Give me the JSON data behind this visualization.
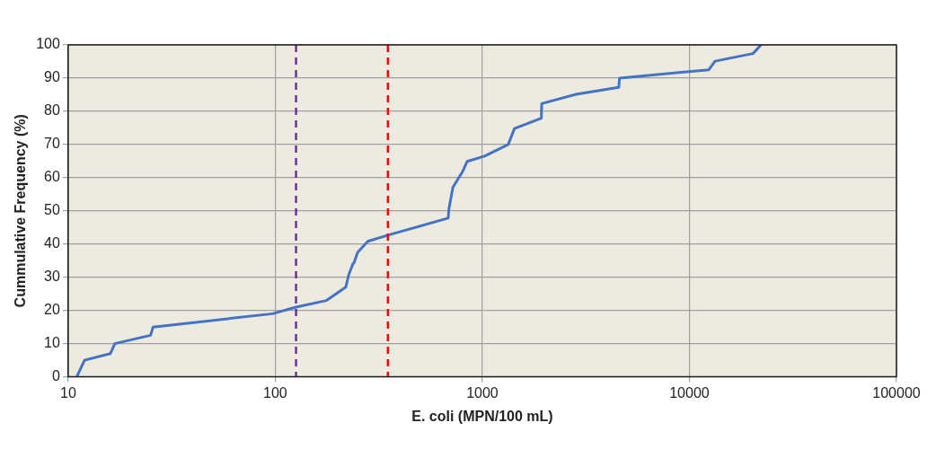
{
  "chart_data": {
    "type": "line",
    "xlabel": "E. coli (MPN/100 mL)",
    "ylabel": "Cummulative Frequency (%)",
    "log": "x",
    "xlim": [
      10,
      100000
    ],
    "xticks": [
      10,
      100,
      1000,
      10000,
      100000
    ],
    "ylim": [
      0,
      100
    ],
    "yticks": [
      0,
      10,
      20,
      30,
      40,
      50,
      60,
      70,
      80,
      90,
      100
    ],
    "grid": true,
    "legend": false,
    "marker": "none",
    "line_style": "solid",
    "series": [
      {
        "color": "#4472c4",
        "x": [
          11,
          12,
          16,
          16.8,
          25,
          25.7,
          97,
          126,
          177,
          219,
          222,
          226,
          237,
          240,
          250,
          280,
          347,
          684,
          690,
          721,
          801,
          845,
          1025,
          1334,
          1430,
          1928,
          1935,
          2838,
          4560,
          4600,
          12410,
          13300,
          20280,
          22180
        ],
        "values": [
          0,
          5,
          7,
          10,
          12.5,
          15,
          19,
          21,
          23,
          27,
          28.5,
          30.6,
          34,
          34.3,
          37.5,
          40.8,
          42.6,
          47.8,
          50.6,
          57.1,
          61.7,
          64.9,
          66.5,
          70,
          74.8,
          77.9,
          82.3,
          85.1,
          87.2,
          90,
          92.5,
          95.1,
          97.4,
          100
        ]
      }
    ],
    "ref_lines": [
      {
        "axis": "x",
        "value": 126,
        "color": "#7030a0",
        "line_style": "dashed"
      },
      {
        "axis": "x",
        "value": 350,
        "color": "#ff0000",
        "line_style": "dashed"
      }
    ]
  }
}
